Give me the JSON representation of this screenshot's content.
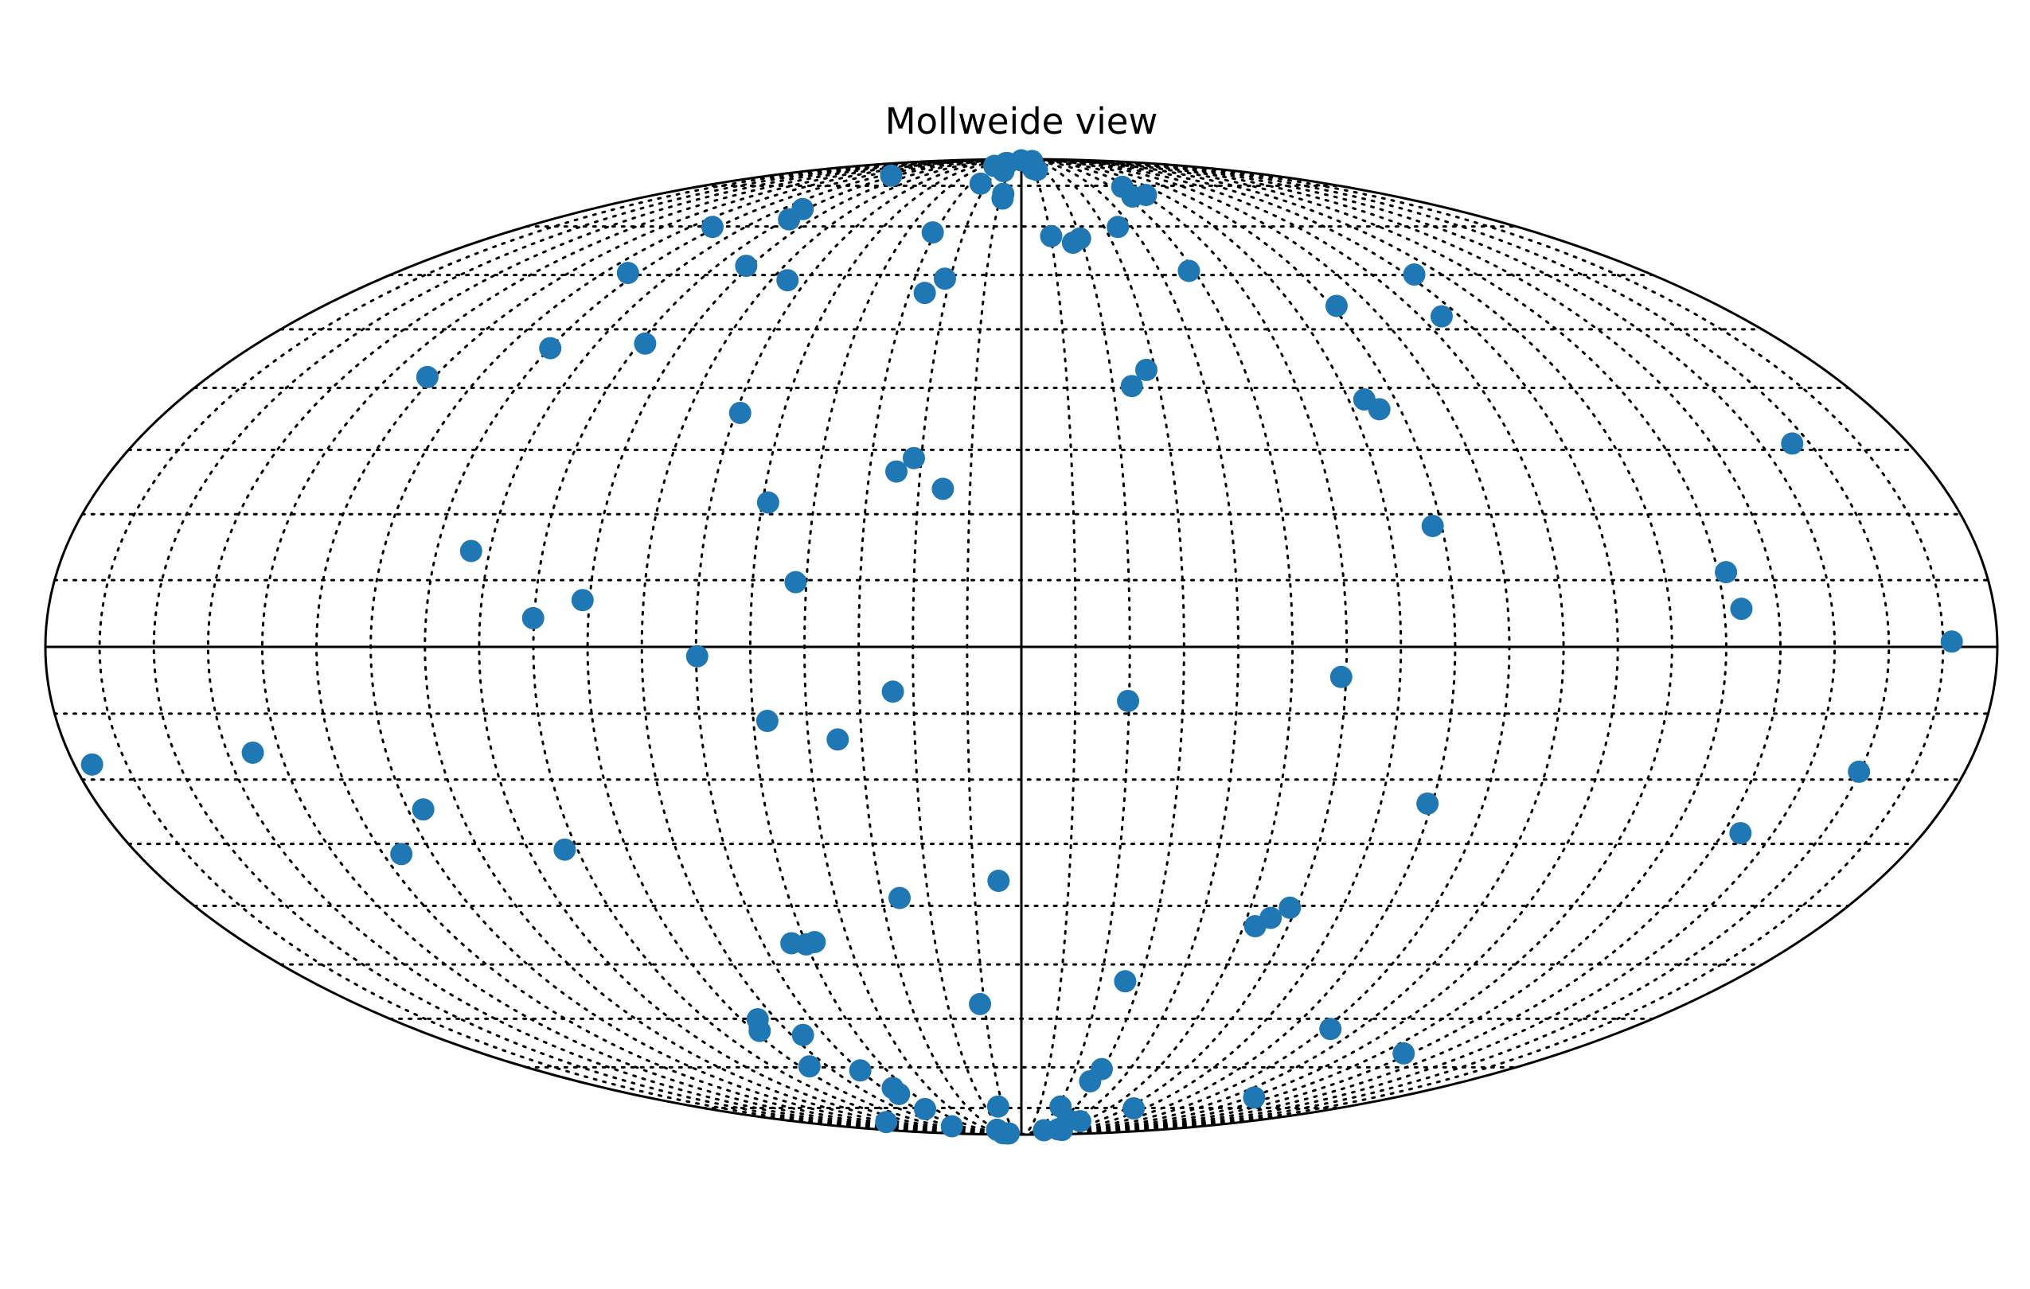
{
  "chart_data": {
    "type": "scatter",
    "title": "Mollweide view",
    "projection": "mollweide",
    "grid": true,
    "grid_style": "dotted",
    "meridian_step_deg": 10,
    "parallel_step_deg": 10,
    "point_color": "#1f77b4",
    "axis_color": "#000000",
    "x_range_deg": [
      -180,
      180
    ],
    "y_range_deg": [
      -90,
      90
    ],
    "points": [
      {
        "lon": 0.0,
        "lat": 89.0
      },
      {
        "lon": -30.0,
        "lat": 86.4
      },
      {
        "lon": -20.0,
        "lat": 87.6
      },
      {
        "lon": -22.3,
        "lat": 87.6
      },
      {
        "lon": -15.0,
        "lat": 84.5
      },
      {
        "lon": -24.0,
        "lat": 80.6
      },
      {
        "lon": 22.3,
        "lat": 88.6
      },
      {
        "lon": 11.0,
        "lat": 85.3
      },
      {
        "lon": 13.7,
        "lat": 84.9
      },
      {
        "lon": -93.0,
        "lat": 83.0
      },
      {
        "lon": -9.0,
        "lat": 77.8
      },
      {
        "lon": -8.8,
        "lat": 76.6
      },
      {
        "lon": 56.0,
        "lat": 79.7
      },
      {
        "lon": 53.3,
        "lat": 77.1
      },
      {
        "lon": 61.0,
        "lat": 77.5
      },
      {
        "lon": -91.5,
        "lat": 74.0
      },
      {
        "lon": -89.0,
        "lat": 71.6
      },
      {
        "lon": -112.0,
        "lat": 69.9
      },
      {
        "lon": -31.0,
        "lat": 68.7
      },
      {
        "lon": 10.2,
        "lat": 67.9
      },
      {
        "lon": 17.0,
        "lat": 66.5
      },
      {
        "lon": 19.8,
        "lat": 67.4
      },
      {
        "lon": 35.0,
        "lat": 69.9
      },
      {
        "lon": -113.0,
        "lat": 60.4
      },
      {
        "lon": -81.3,
        "lat": 61.8
      },
      {
        "lon": -65.4,
        "lat": 59.0
      },
      {
        "lon": -21.5,
        "lat": 59.3
      },
      {
        "lon": -25.9,
        "lat": 56.6
      },
      {
        "lon": 48.5,
        "lat": 60.8
      },
      {
        "lon": 112.2,
        "lat": 60.1
      },
      {
        "lon": 81.3,
        "lat": 54.2
      },
      {
        "lon": 105.4,
        "lat": 52.3
      },
      {
        "lon": -109.9,
        "lat": 46.7
      },
      {
        "lon": -88.6,
        "lat": 47.5
      },
      {
        "lon": -131.5,
        "lat": 41.8
      },
      {
        "lon": 28.0,
        "lat": 43.0
      },
      {
        "lon": 24.1,
        "lat": 40.3
      },
      {
        "lon": -59.1,
        "lat": 35.9
      },
      {
        "lon": 73.4,
        "lat": 38.1
      },
      {
        "lon": 75.6,
        "lat": 36.5
      },
      {
        "lon": 156.4,
        "lat": 31.0
      },
      {
        "lon": -21.5,
        "lat": 28.7
      },
      {
        "lon": -24.7,
        "lat": 26.6
      },
      {
        "lon": -15.3,
        "lat": 23.9
      },
      {
        "lon": -48.9,
        "lat": 21.8
      },
      {
        "lon": 78.3,
        "lat": 18.2
      },
      {
        "lon": -103.5,
        "lat": 14.4
      },
      {
        "lon": -42.0,
        "lat": 9.7
      },
      {
        "lon": -81.3,
        "lat": 7.0
      },
      {
        "lon": -90.2,
        "lat": 4.3
      },
      {
        "lon": 131.5,
        "lat": 11.2
      },
      {
        "lon": 133.2,
        "lat": 5.7
      },
      {
        "lon": 171.6,
        "lat": 0.8
      },
      {
        "lon": -59.8,
        "lat": -1.4
      },
      {
        "lon": -23.8,
        "lat": -6.7
      },
      {
        "lon": 59.1,
        "lat": -4.5
      },
      {
        "lon": 19.8,
        "lat": -8.1
      },
      {
        "lon": -47.4,
        "lat": -11.1
      },
      {
        "lon": -34.5,
        "lat": -13.9
      },
      {
        "lon": -176.6,
        "lat": -17.7
      },
      {
        "lon": -145.2,
        "lat": -15.9
      },
      {
        "lon": 159.8,
        "lat": -18.8
      },
      {
        "lon": 79.1,
        "lat": -23.7
      },
      {
        "lon": -117.0,
        "lat": -24.6
      },
      {
        "lon": -126.3,
        "lat": -31.6
      },
      {
        "lon": 143.5,
        "lat": -28.3
      },
      {
        "lon": -92.6,
        "lat": -30.9
      },
      {
        "lon": -4.8,
        "lat": -35.9
      },
      {
        "lon": -26.2,
        "lat": -38.7
      },
      {
        "lon": 58.6,
        "lat": -40.3
      },
      {
        "lon": 55.3,
        "lat": -42.0
      },
      {
        "lon": 52.6,
        "lat": -43.4
      },
      {
        "lon": -53.4,
        "lat": -46.3
      },
      {
        "lon": -47.9,
        "lat": -46.1
      },
      {
        "lon": -50.1,
        "lat": -46.5
      },
      {
        "lon": 26.3,
        "lat": -53.0
      },
      {
        "lon": -11.2,
        "lat": -57.2
      },
      {
        "lon": -75.3,
        "lat": -60.1
      },
      {
        "lon": -78.3,
        "lat": -62.4
      },
      {
        "lon": 91.7,
        "lat": -62.0
      },
      {
        "lon": -66.5,
        "lat": -63.2
      },
      {
        "lon": 127.6,
        "lat": -67.0
      },
      {
        "lon": -76.6,
        "lat": -69.8
      },
      {
        "lon": -59.9,
        "lat": -70.7
      },
      {
        "lon": 29.6,
        "lat": -70.4
      },
      {
        "lon": 27.9,
        "lat": -73.2
      },
      {
        "lon": -55.6,
        "lat": -74.8
      },
      {
        "lon": -56.5,
        "lat": -76.3
      },
      {
        "lon": 112.3,
        "lat": -77.2
      },
      {
        "lon": 64.0,
        "lat": -80.1
      },
      {
        "lon": -12.8,
        "lat": -79.6
      },
      {
        "lon": 21.6,
        "lat": -79.6
      },
      {
        "lon": -55.6,
        "lat": -80.3
      },
      {
        "lon": 46.5,
        "lat": -84.0
      },
      {
        "lon": 35.3,
        "lat": -83.6
      },
      {
        "lon": -110.5,
        "lat": -84.3
      },
      {
        "lon": -69.5,
        "lat": -85.8
      },
      {
        "lon": 54.4,
        "lat": -87.3
      },
      {
        "lon": 46.0,
        "lat": -87.0
      },
      {
        "lon": 31.1,
        "lat": -87.4
      },
      {
        "lon": -31.8,
        "lat": -87.2
      },
      {
        "lon": -45.0,
        "lat": -88.9
      },
      {
        "lon": -32.7,
        "lat": -89.0
      },
      {
        "lon": -38.8,
        "lat": -89.0
      }
    ]
  }
}
